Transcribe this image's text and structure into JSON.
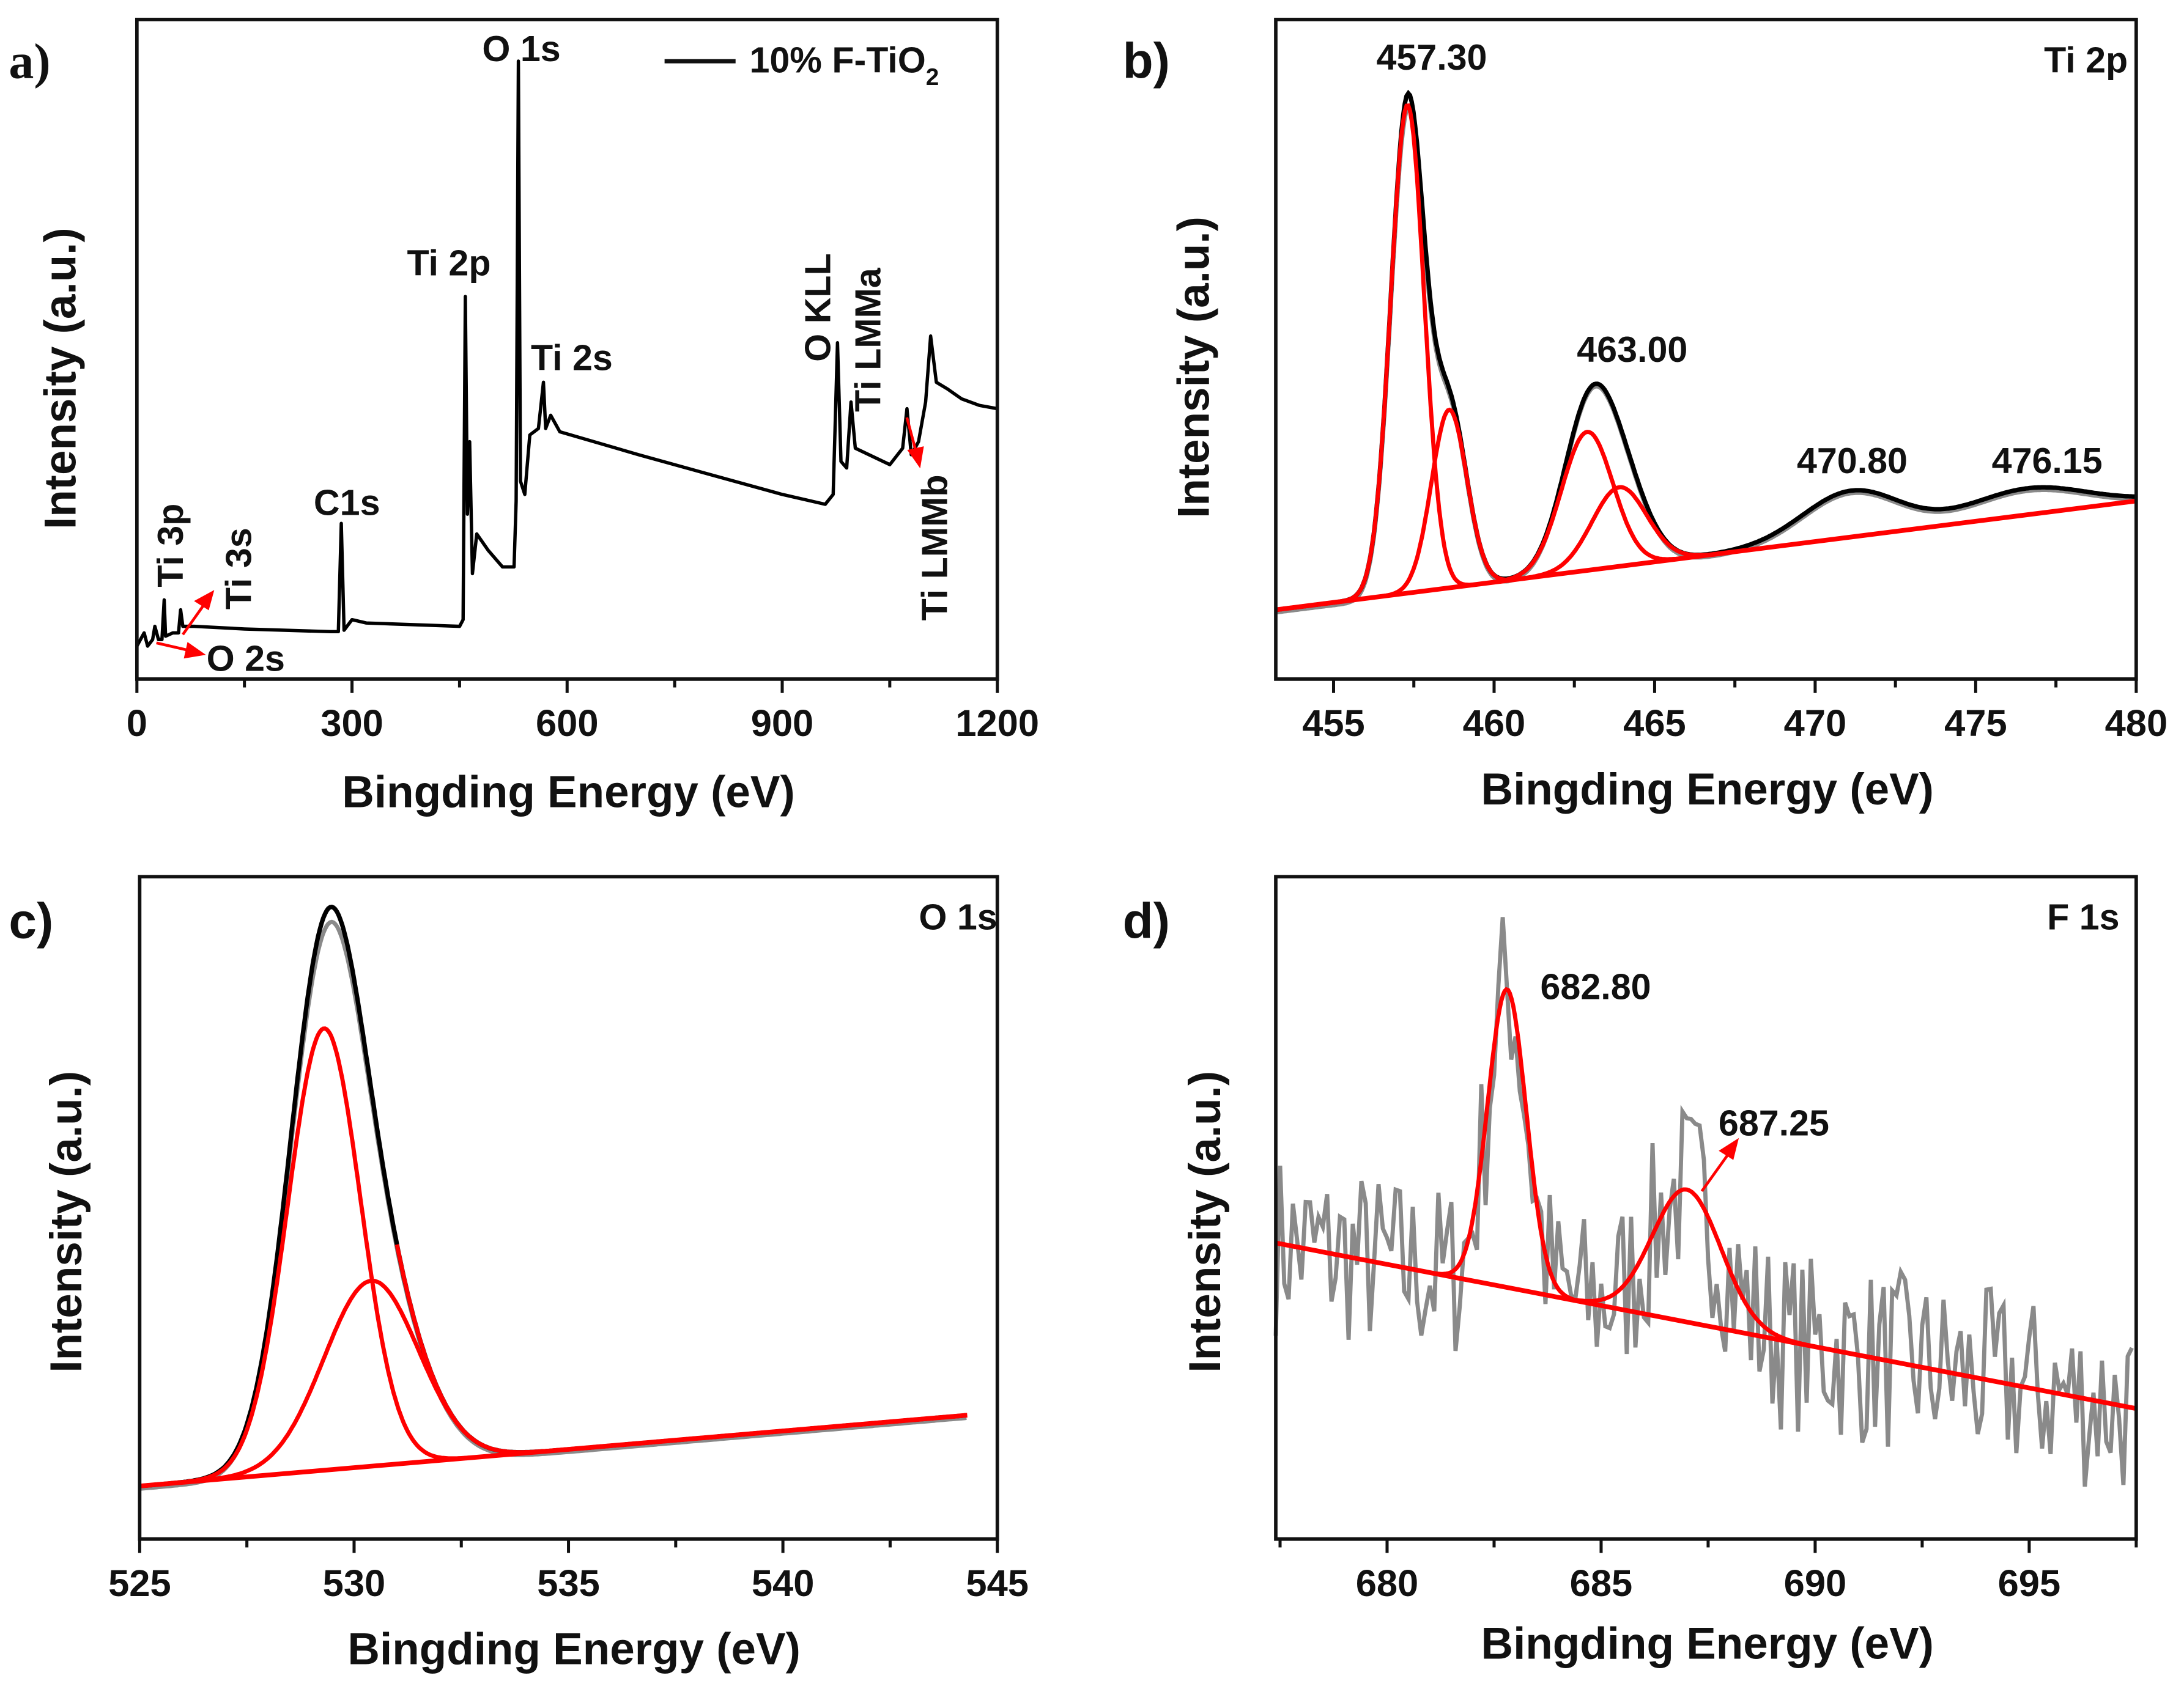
{
  "figure": {
    "panel_letters": [
      "a)",
      "b)",
      "c)",
      "d)"
    ]
  },
  "colors": {
    "data": "#000000",
    "raw": "#8a8a8a",
    "fit": "#ff0000",
    "baseline_dashed": "#1a1aff",
    "arrow": "#ff0000"
  },
  "chart_data": [
    {
      "id": "a",
      "type": "line",
      "title": "",
      "xlabel": "Bingding Energy (eV)",
      "ylabel": "Intensity (a.u.)",
      "xlim": [
        0,
        1200
      ],
      "ylim": [
        0,
        100
      ],
      "xticks": [
        0,
        300,
        600,
        900,
        1200
      ],
      "xtick_labels": [
        "0",
        "300",
        "600",
        "900",
        "1200"
      ],
      "minor_step": 150,
      "legend": {
        "position": "top-right",
        "label": "10% F-TiO",
        "label_sub": "2"
      },
      "series": [
        {
          "name": "10% F-TiO2",
          "color": "#000000",
          "points": [
            [
              0,
              5
            ],
            [
              10,
              7
            ],
            [
              15,
              5
            ],
            [
              22,
              6
            ],
            [
              25,
              8
            ],
            [
              30,
              6
            ],
            [
              35,
              6
            ],
            [
              38,
              12
            ],
            [
              40,
              6.5
            ],
            [
              50,
              7
            ],
            [
              58,
              7
            ],
            [
              61,
              10.5
            ],
            [
              64,
              8
            ],
            [
              80,
              8
            ],
            [
              150,
              7.6
            ],
            [
              270,
              7.2
            ],
            [
              281,
              7.2
            ],
            [
              285,
              23.6
            ],
            [
              289,
              7.4
            ],
            [
              300,
              9
            ],
            [
              320,
              8.5
            ],
            [
              450,
              8
            ],
            [
              455,
              9
            ],
            [
              458,
              58
            ],
            [
              461,
              25
            ],
            [
              464,
              36
            ],
            [
              468,
              16
            ],
            [
              474,
              22
            ],
            [
              490,
              19.5
            ],
            [
              510,
              17
            ],
            [
              526,
              17
            ],
            [
              529,
              27
            ],
            [
              532,
              93.7
            ],
            [
              535,
              30
            ],
            [
              541,
              28
            ],
            [
              548,
              37
            ],
            [
              560,
              38
            ],
            [
              567,
              45
            ],
            [
              570,
              38
            ],
            [
              577,
              40
            ],
            [
              590,
              37.5
            ],
            [
              700,
              34
            ],
            [
              800,
              31
            ],
            [
              900,
              28
            ],
            [
              960,
              26.5
            ],
            [
              971,
              28
            ],
            [
              977,
              51
            ],
            [
              982,
              33
            ],
            [
              990,
              32
            ],
            [
              996,
              42
            ],
            [
              1002,
              35
            ],
            [
              1050,
              32.5
            ],
            [
              1068,
              35
            ],
            [
              1074,
              41
            ],
            [
              1080,
              34
            ],
            [
              1090,
              36
            ],
            [
              1100,
              42
            ],
            [
              1107,
              52
            ],
            [
              1115,
              45
            ],
            [
              1130,
              44
            ],
            [
              1150,
              42.5
            ],
            [
              1175,
              41.5
            ],
            [
              1200,
              41
            ]
          ]
        }
      ],
      "annotations": [
        {
          "text": "O 1s"
        },
        {
          "text": "Ti 2p"
        },
        {
          "text": "Ti 2s"
        },
        {
          "text": "C1s"
        },
        {
          "text": "Ti 3p"
        },
        {
          "text": "Ti 3s"
        },
        {
          "text": "O 2s"
        },
        {
          "text": "O KLL"
        },
        {
          "text": "Ti LMMa"
        },
        {
          "text": "Ti LMMb"
        }
      ]
    },
    {
      "id": "b",
      "type": "line",
      "title": "Ti 2p",
      "xlabel": "Bingding Energy (eV)",
      "ylabel": "Intensity (a.u.)",
      "xlim": [
        453.2,
        480
      ],
      "ylim": [
        0,
        100
      ],
      "xticks": [
        455,
        460,
        465,
        470,
        475,
        480
      ],
      "xtick_labels": [
        "455",
        "460",
        "465",
        "470",
        "475",
        "480"
      ],
      "minor_step": 2.5,
      "baseline": [
        [
          453.2,
          10.5
        ],
        [
          480,
          27
        ]
      ],
      "components": [
        {
          "center": 457.3,
          "height": 74,
          "sigma": 0.52
        },
        {
          "center": 458.6,
          "height": 27,
          "sigma": 0.55
        },
        {
          "center": 462.9,
          "height": 21,
          "sigma": 0.8
        },
        {
          "center": 463.9,
          "height": 12,
          "sigma": 0.85
        }
      ],
      "satellites": [
        {
          "center": 471.1,
          "height": 7,
          "sigma": 1.5
        },
        {
          "center": 476.6,
          "height": 4,
          "sigma": 1.8
        }
      ],
      "peak_labels": [
        "457.30",
        "463.00",
        "470.80",
        "476.15"
      ]
    },
    {
      "id": "c",
      "type": "line",
      "title": "O 1s",
      "xlabel": "Bingding Energy (eV)",
      "ylabel": "Intensity (a.u.)",
      "xlim": [
        525,
        545
      ],
      "ylim": [
        0,
        100
      ],
      "xticks": [
        525,
        530,
        535,
        540,
        545
      ],
      "xtick_labels": [
        "525",
        "530",
        "535",
        "540",
        "545"
      ],
      "minor_step": 2.5,
      "baseline": [
        [
          525,
          8
        ],
        [
          544.3,
          18.7
        ]
      ],
      "dashed_baseline_to": 533,
      "components": [
        {
          "center": 529.3,
          "height": 66.7,
          "sigma": 0.85
        },
        {
          "center": 530.4,
          "height": 28,
          "sigma": 1.1
        }
      ],
      "peak_labels": []
    },
    {
      "id": "d",
      "type": "line",
      "title": "F 1s",
      "xlabel": "Bingding Energy (eV)",
      "ylabel": "Intensity (a.u.)",
      "xlim": [
        677.4,
        697.5
      ],
      "ylim": [
        0,
        100
      ],
      "xticks": [
        680,
        685,
        690,
        695
      ],
      "xtick_labels": [
        "680",
        "685",
        "690",
        "695"
      ],
      "minor_step": 2.5,
      "baseline": [
        [
          677.4,
          44.7
        ],
        [
          697.5,
          19.7
        ]
      ],
      "components": [
        {
          "center": 682.8,
          "height": 45,
          "sigma": 0.45
        },
        {
          "center": 687.0,
          "height": 20,
          "sigma": 0.8
        }
      ],
      "raw_noise_amplitude": 14,
      "peak_labels": [
        "682.80",
        "687.25"
      ]
    }
  ]
}
